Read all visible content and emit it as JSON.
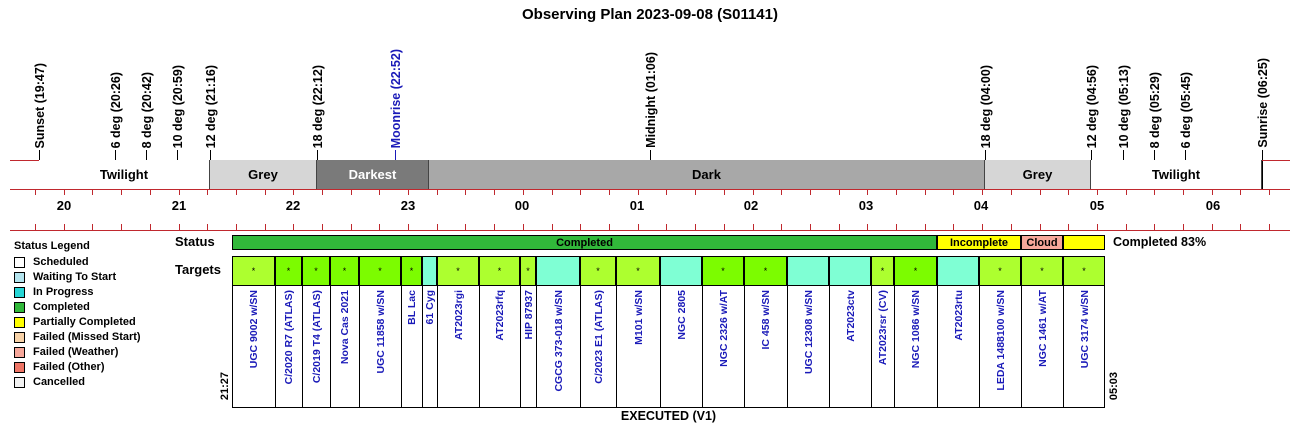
{
  "title": "Observing Plan 2023-09-08 (S01141)",
  "events": [
    {
      "label": "Sunset (19:47)",
      "color": "#000000"
    },
    {
      "label": "6 deg (20:26)",
      "color": "#000000"
    },
    {
      "label": "8 deg (20:42)",
      "color": "#000000"
    },
    {
      "label": "10 deg (20:59)",
      "color": "#000000"
    },
    {
      "label": "12 deg (21:16)",
      "color": "#000000"
    },
    {
      "label": "18 deg (22:12)",
      "color": "#000000"
    },
    {
      "label": "Moonrise (22:52)",
      "color": "#1a1ab8"
    },
    {
      "label": "Midnight (01:06)",
      "color": "#000000"
    },
    {
      "label": "18 deg (04:00)",
      "color": "#000000"
    },
    {
      "label": "12 deg (04:56)",
      "color": "#000000"
    },
    {
      "label": "10 deg (05:13)",
      "color": "#000000"
    },
    {
      "label": "8 deg (05:29)",
      "color": "#000000"
    },
    {
      "label": "6 deg (05:45)",
      "color": "#000000"
    },
    {
      "label": "Sunrise (06:25)",
      "color": "#000000"
    }
  ],
  "bands": [
    {
      "label": "Twilight",
      "bg": "#ffffff",
      "fg": "#000000"
    },
    {
      "label": "Grey",
      "bg": "#d6d6d6",
      "fg": "#000000"
    },
    {
      "label": "Darkest",
      "bg": "#7a7a7a",
      "fg": "#ffffff"
    },
    {
      "label": "Dark",
      "bg": "#a8a8a8",
      "fg": "#000000"
    },
    {
      "label": "Grey",
      "bg": "#d6d6d6",
      "fg": "#000000"
    },
    {
      "label": "Twilight",
      "bg": "#ffffff",
      "fg": "#000000"
    }
  ],
  "hours": [
    "20",
    "21",
    "22",
    "23",
    "00",
    "01",
    "02",
    "03",
    "04",
    "05",
    "06"
  ],
  "legend": {
    "title": "Status Legend",
    "items": [
      {
        "label": "Scheduled",
        "color": "#ffffff"
      },
      {
        "label": "Waiting To Start",
        "color": "#b4e4ee"
      },
      {
        "label": "In Progress",
        "color": "#27d6d6"
      },
      {
        "label": "Completed",
        "color": "#31b83a"
      },
      {
        "label": "Partially Completed",
        "color": "#ffff00"
      },
      {
        "label": "Failed (Missed Start)",
        "color": "#f7d2a8"
      },
      {
        "label": "Failed (Weather)",
        "color": "#f6a79a"
      },
      {
        "label": "Failed (Other)",
        "color": "#ee7566"
      },
      {
        "label": "Cancelled",
        "color": "#f2f2f2"
      }
    ]
  },
  "status_row": {
    "label": "Status",
    "segments": [
      {
        "label": "Completed",
        "color": "#31b83a"
      },
      {
        "label": "Incomplete",
        "color": "#ffff00"
      },
      {
        "label": "Cloud",
        "color": "#f6a79a"
      },
      {
        "label": "",
        "color": "#ffff00"
      }
    ],
    "summary": "Completed 83%"
  },
  "targets_row": {
    "label": "Targets",
    "start_time": "21:27",
    "end_time": "05:03",
    "footer": "EXECUTED (V1)",
    "items": [
      {
        "name": "UGC 9002 w/SN",
        "color": "#adff2f",
        "mark": "*"
      },
      {
        "name": "C/2020 R7 (ATLAS)",
        "color": "#7cfc00",
        "mark": "*"
      },
      {
        "name": "C/2019 T4 (ATLAS)",
        "color": "#7cfc00",
        "mark": "*"
      },
      {
        "name": "Nova Cas 2021",
        "color": "#7cfc00",
        "mark": "*"
      },
      {
        "name": "UGC 11858 w/SN",
        "color": "#7cfc00",
        "mark": "*"
      },
      {
        "name": "BL Lac",
        "color": "#7cfc00",
        "mark": "*"
      },
      {
        "name": "61 Cyg",
        "color": "#7fffd4",
        "mark": ""
      },
      {
        "name": "AT2023rgi",
        "color": "#adff2f",
        "mark": "*"
      },
      {
        "name": "AT2023rfq",
        "color": "#adff2f",
        "mark": "*"
      },
      {
        "name": "HIP 87937",
        "color": "#adff2f",
        "mark": "*"
      },
      {
        "name": "CGCG 373-018 w/SN",
        "color": "#7fffd4",
        "mark": ""
      },
      {
        "name": "C/2023 E1 (ATLAS)",
        "color": "#adff2f",
        "mark": "*"
      },
      {
        "name": "M101 w/SN",
        "color": "#adff2f",
        "mark": "*"
      },
      {
        "name": "NGC 2805",
        "color": "#7fffd4",
        "mark": ""
      },
      {
        "name": "NGC 2326 w/AT",
        "color": "#7cfc00",
        "mark": "*"
      },
      {
        "name": "IC 458 w/SN",
        "color": "#7cfc00",
        "mark": "*"
      },
      {
        "name": "UGC 12308 w/SN",
        "color": "#7fffd4",
        "mark": ""
      },
      {
        "name": "AT2023ctv",
        "color": "#7fffd4",
        "mark": ""
      },
      {
        "name": "AT2023rsr (CV)",
        "color": "#adff2f",
        "mark": "*"
      },
      {
        "name": "NGC 1086 w/SN",
        "color": "#7cfc00",
        "mark": "*"
      },
      {
        "name": "AT2023rtu",
        "color": "#7fffd4",
        "mark": ""
      },
      {
        "name": "LEDA 1488100 w/SN",
        "color": "#adff2f",
        "mark": "*"
      },
      {
        "name": "NGC 1461 w/AT",
        "color": "#adff2f",
        "mark": "*"
      },
      {
        "name": "UGC 3174 w/SN",
        "color": "#adff2f",
        "mark": "*"
      }
    ]
  }
}
